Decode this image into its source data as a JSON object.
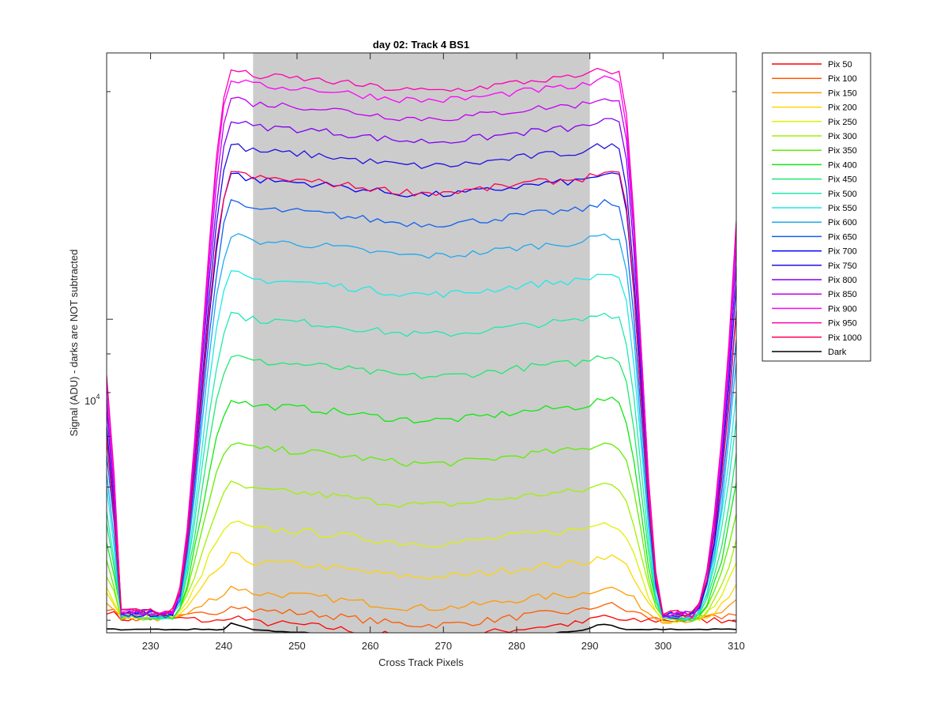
{
  "chart_data": {
    "type": "line",
    "title": "day 02: Track 4  BS1",
    "xlabel": "Cross Track Pixels",
    "ylabel": "Signal (ADU) - darks are NOT subtracted",
    "y_scale": "log",
    "xlim": [
      224,
      310
    ],
    "ylim": [
      3850,
      22500
    ],
    "x_ticks": [
      230,
      240,
      250,
      260,
      270,
      280,
      290,
      300,
      310
    ],
    "x_tick_labels": [
      "230",
      "240",
      "250",
      "260",
      "270",
      "280",
      "290",
      "300",
      "310"
    ],
    "y_tick_label": {
      "base": "10",
      "exponent": "4",
      "value": 10000
    },
    "shaded_region": {
      "x": [
        244,
        290
      ],
      "color": "#cccccc"
    },
    "legend_position": "outside-right",
    "series": [
      {
        "name": "Pix 50",
        "color": "#ff0000",
        "plateau": 3980
      },
      {
        "name": "Pix 100",
        "color": "#ff5a00",
        "plateau": 4130
      },
      {
        "name": "Pix 150",
        "color": "#ff9900",
        "plateau": 4350
      },
      {
        "name": "Pix 200",
        "color": "#ffd500",
        "plateau": 4780
      },
      {
        "name": "Pix 250",
        "color": "#e0f000",
        "plateau": 5290
      },
      {
        "name": "Pix 300",
        "color": "#a0f000",
        "plateau": 5950
      },
      {
        "name": "Pix 350",
        "color": "#60ee00",
        "plateau": 6750
      },
      {
        "name": "Pix 400",
        "color": "#10e810",
        "plateau": 7700
      },
      {
        "name": "Pix 450",
        "color": "#20e870",
        "plateau": 8800
      },
      {
        "name": "Pix 500",
        "color": "#20e8b0",
        "plateau": 10000
      },
      {
        "name": "Pix 550",
        "color": "#20e8e8",
        "plateau": 11300
      },
      {
        "name": "Pix 600",
        "color": "#20a8f0",
        "plateau": 12700
      },
      {
        "name": "Pix 650",
        "color": "#1060f0",
        "plateau": 14000
      },
      {
        "name": "Pix 700",
        "color": "#0000ff",
        "plateau": 15300
      },
      {
        "name": "Pix 750",
        "color": "#2010e0",
        "plateau": 16700
      },
      {
        "name": "Pix 800",
        "color": "#8000f0",
        "plateau": 18000
      },
      {
        "name": "Pix 850",
        "color": "#c000f0",
        "plateau": 19300
      },
      {
        "name": "Pix 900",
        "color": "#ff00ff",
        "plateau": 20400
      },
      {
        "name": "Pix 950",
        "color": "#ff00b0",
        "plateau": 21000
      },
      {
        "name": "Pix 1000",
        "color": "#ff0050",
        "plateau": 15400
      },
      {
        "name": "Dark",
        "color": "#000000",
        "plateau": 3890
      }
    ]
  }
}
